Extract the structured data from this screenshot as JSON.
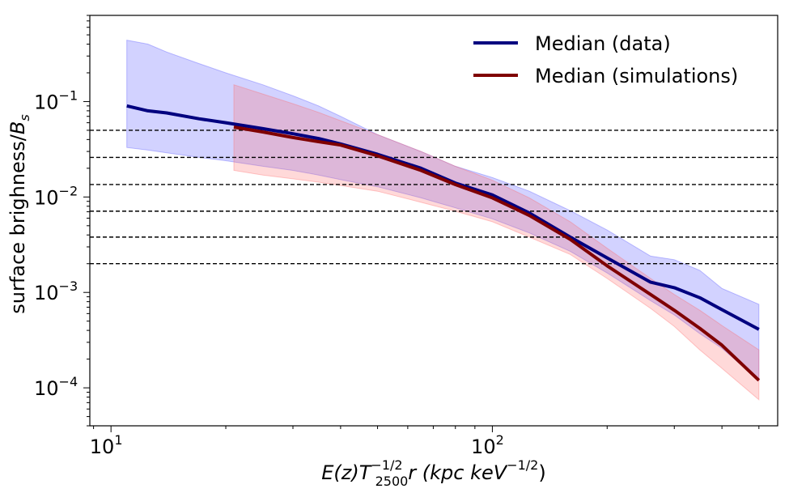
{
  "chart_data": {
    "type": "line",
    "title": "",
    "xlabel": {
      "base": "E(z)T",
      "sup": "−1/2",
      "sub": "2500",
      "tail": "r (kpc keV",
      "unit_sup": "−1/2",
      "close": ")"
    },
    "ylabel": {
      "main": "surface brighness/",
      "var": "B",
      "sub": "s"
    },
    "xscale": "log",
    "yscale": "log",
    "xlim": [
      8.8,
      560
    ],
    "ylim": [
      4e-05,
      0.8
    ],
    "x_tick_labels": [
      {
        "value": 10,
        "base": "10",
        "exp": "1"
      },
      {
        "value": 100,
        "base": "10",
        "exp": "2"
      }
    ],
    "y_tick_labels": [
      {
        "value": 0.1,
        "base": "10",
        "exp": "−1"
      },
      {
        "value": 0.01,
        "base": "10",
        "exp": "−2"
      },
      {
        "value": 0.001,
        "base": "10",
        "exp": "−3"
      },
      {
        "value": 0.0001,
        "base": "10",
        "exp": "−4"
      }
    ],
    "reference_lines": [
      0.05,
      0.026,
      0.0135,
      0.0071,
      0.0038,
      0.002
    ],
    "legend_position": "top-right",
    "series": [
      {
        "name": "Median (data)",
        "color": "#00007f",
        "band_color": "#4d4dff",
        "x": [
          11,
          12.5,
          14,
          17,
          20,
          25,
          30,
          35,
          40,
          50,
          65,
          80,
          100,
          125,
          160,
          200,
          260,
          300,
          350,
          400,
          500
        ],
        "values": [
          0.09,
          0.08,
          0.076,
          0.066,
          0.06,
          0.052,
          0.046,
          0.041,
          0.036,
          0.028,
          0.02,
          0.014,
          0.0105,
          0.0068,
          0.0038,
          0.0023,
          0.00128,
          0.00112,
          0.00088,
          0.00066,
          0.00041
        ],
        "lower": [
          0.033,
          0.031,
          0.029,
          0.026,
          0.024,
          0.021,
          0.019,
          0.017,
          0.0152,
          0.0128,
          0.0098,
          0.0077,
          0.0059,
          0.0042,
          0.0027,
          0.0016,
          0.00082,
          0.00058,
          0.00037,
          0.00026,
          0.00012
        ],
        "upper": [
          0.44,
          0.4,
          0.33,
          0.25,
          0.2,
          0.15,
          0.115,
          0.09,
          0.07,
          0.045,
          0.03,
          0.021,
          0.016,
          0.0115,
          0.0072,
          0.0045,
          0.0024,
          0.0022,
          0.0017,
          0.0011,
          0.00075
        ]
      },
      {
        "name": "Median (simulations)",
        "color": "#7f0000",
        "band_color": "#ff6666",
        "x": [
          21,
          25,
          30,
          35,
          40,
          50,
          65,
          80,
          100,
          125,
          160,
          200,
          260,
          300,
          350,
          400,
          500
        ],
        "values": [
          0.054,
          0.048,
          0.042,
          0.038,
          0.035,
          0.027,
          0.019,
          0.0135,
          0.0098,
          0.0064,
          0.0036,
          0.0019,
          0.00095,
          0.00065,
          0.00042,
          0.00028,
          0.00012
        ],
        "lower": [
          0.019,
          0.017,
          0.0155,
          0.0143,
          0.0132,
          0.0115,
          0.0088,
          0.0071,
          0.0055,
          0.0038,
          0.0025,
          0.0014,
          0.00068,
          0.00044,
          0.00025,
          0.00016,
          7.5e-05
        ],
        "upper": [
          0.15,
          0.12,
          0.095,
          0.077,
          0.063,
          0.045,
          0.03,
          0.021,
          0.015,
          0.0098,
          0.0055,
          0.0029,
          0.0014,
          0.00095,
          0.00065,
          0.00045,
          0.00025
        ]
      }
    ]
  }
}
